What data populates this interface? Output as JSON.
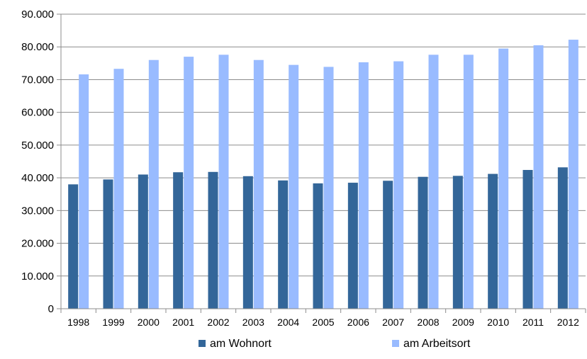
{
  "chart_data": {
    "type": "bar",
    "title": "",
    "xlabel": "",
    "ylabel": "",
    "categories": [
      "1998",
      "1999",
      "2000",
      "2001",
      "2002",
      "2003",
      "2004",
      "2005",
      "2006",
      "2007",
      "2008",
      "2009",
      "2010",
      "2011",
      "2012"
    ],
    "series": [
      {
        "name": "am Wohnort",
        "color": "#336699",
        "values": [
          38000,
          39500,
          41000,
          41700,
          41800,
          40500,
          39200,
          38300,
          38500,
          39100,
          40300,
          40600,
          41200,
          42400,
          43200
        ]
      },
      {
        "name": "am Arbeitsort",
        "color": "#99bbff",
        "values": [
          71600,
          73300,
          76000,
          77000,
          77600,
          76000,
          74500,
          73900,
          75300,
          75600,
          77600,
          77600,
          79500,
          80500,
          82200
        ]
      }
    ],
    "ylim": [
      0,
      90000
    ],
    "yticks": [
      0,
      10000,
      20000,
      30000,
      40000,
      50000,
      60000,
      70000,
      80000,
      90000
    ],
    "ytick_labels": [
      "0",
      "10.000",
      "20.000",
      "30.000",
      "40.000",
      "50.000",
      "60.000",
      "70.000",
      "80.000",
      "90.000"
    ],
    "grid": true,
    "legend_position": "bottom"
  }
}
